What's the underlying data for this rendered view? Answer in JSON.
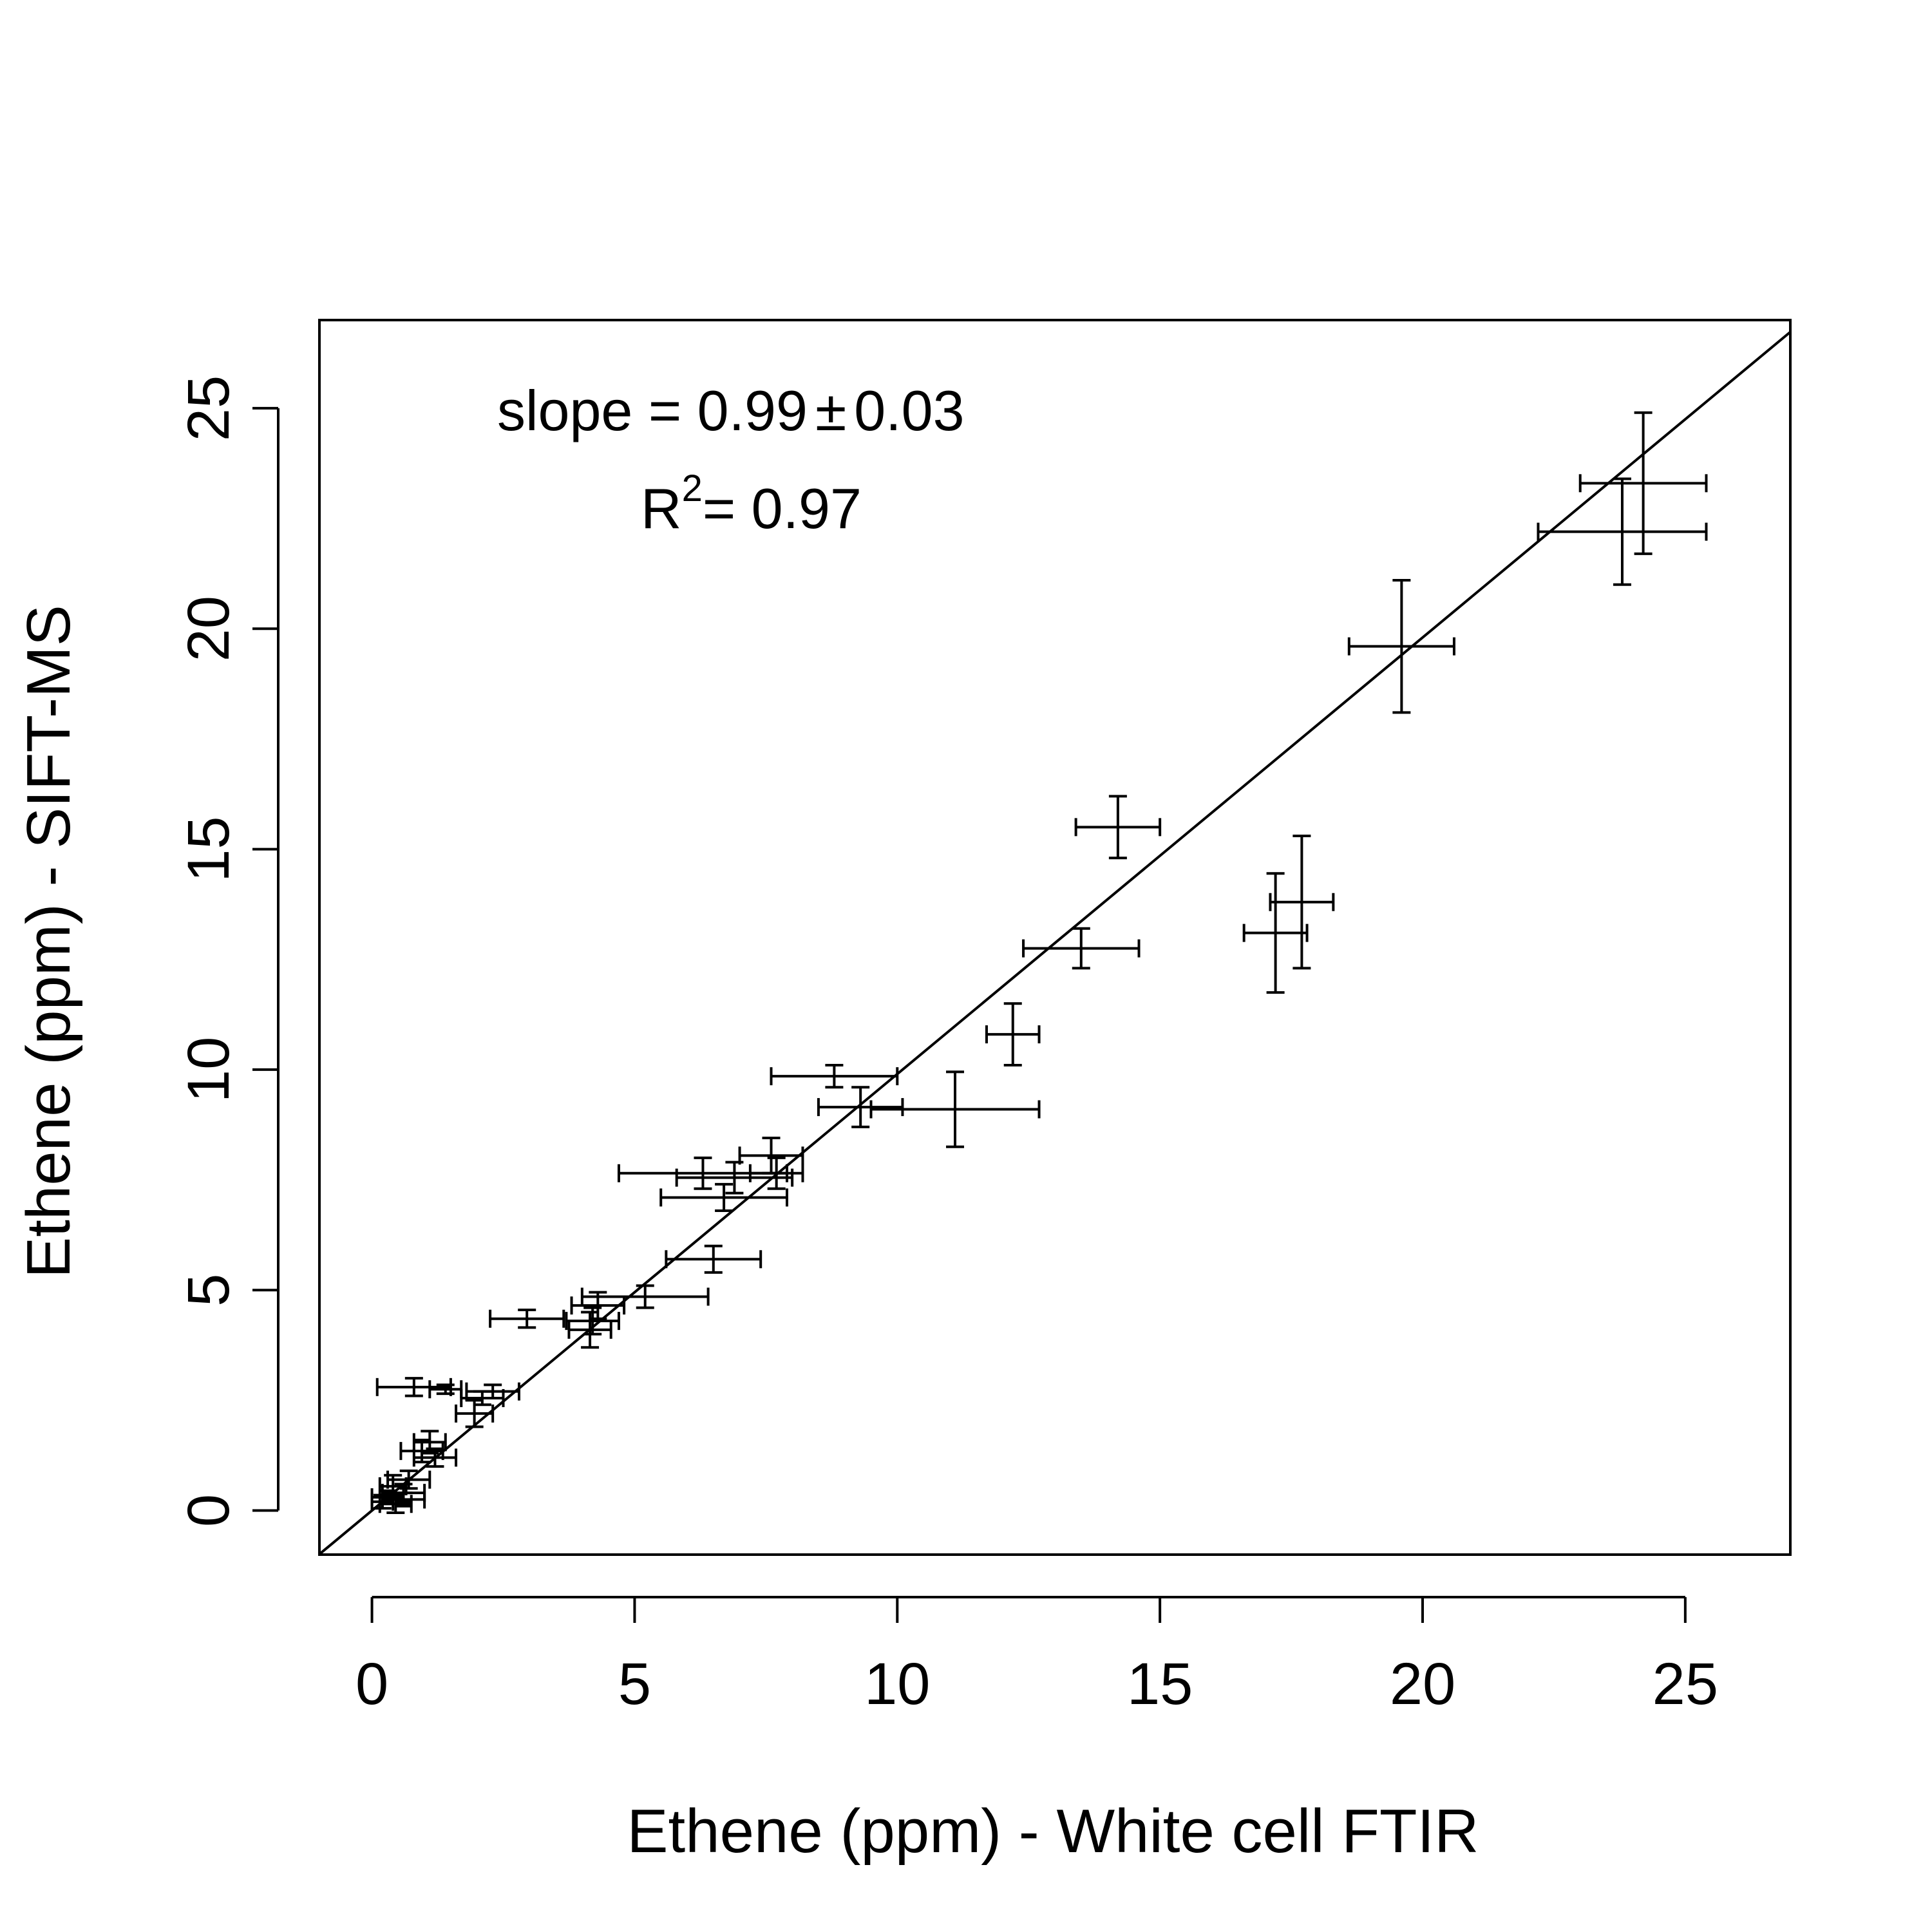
{
  "chart_data": {
    "type": "scatter",
    "title": "",
    "xlabel": "Ethene (ppm) - White cell FTIR",
    "ylabel": "Ethene (ppm) - SIFT-MS",
    "xlim": [
      -1,
      27
    ],
    "ylim": [
      -1,
      27
    ],
    "x_ticks": [
      "0",
      "5",
      "10",
      "15",
      "20",
      "25"
    ],
    "y_ticks": [
      "0",
      "5",
      "10",
      "15",
      "20",
      "25"
    ],
    "grid": false,
    "annotation": {
      "slope_text": "slope = 0.99",
      "pm_symbol": "±",
      "slope_err": "0.03",
      "r2_label": "R",
      "r2_sup": "2",
      "r2_value": "= 0.97"
    },
    "fit_line": {
      "slope": 0.99,
      "intercept": 0
    },
    "points": [
      {
        "x": 24.2,
        "y": 23.3,
        "xerr": 1.2,
        "yerr": 1.6
      },
      {
        "x": 23.8,
        "y": 22.2,
        "xerr": 1.6,
        "yerr": 1.2
      },
      {
        "x": 19.6,
        "y": 19.6,
        "xerr": 1.0,
        "yerr": 1.5
      },
      {
        "x": 14.2,
        "y": 15.5,
        "xerr": 0.8,
        "yerr": 0.7
      },
      {
        "x": 17.7,
        "y": 13.8,
        "xerr": 0.6,
        "yerr": 1.5
      },
      {
        "x": 17.2,
        "y": 13.1,
        "xerr": 0.6,
        "yerr": 1.35
      },
      {
        "x": 13.5,
        "y": 12.75,
        "xerr": 1.1,
        "yerr": 0.45
      },
      {
        "x": 12.2,
        "y": 10.8,
        "xerr": 0.5,
        "yerr": 0.7
      },
      {
        "x": 8.8,
        "y": 9.85,
        "xerr": 1.2,
        "yerr": 0.25
      },
      {
        "x": 9.3,
        "y": 9.15,
        "xerr": 0.8,
        "yerr": 0.45
      },
      {
        "x": 11.1,
        "y": 9.1,
        "xerr": 1.6,
        "yerr": 0.85
      },
      {
        "x": 7.6,
        "y": 8.05,
        "xerr": 0.6,
        "yerr": 0.4
      },
      {
        "x": 7.7,
        "y": 7.65,
        "xerr": 0.5,
        "yerr": 0.35
      },
      {
        "x": 6.9,
        "y": 7.55,
        "xerr": 1.1,
        "yerr": 0.35
      },
      {
        "x": 6.3,
        "y": 7.65,
        "xerr": 1.6,
        "yerr": 0.35
      },
      {
        "x": 6.7,
        "y": 7.1,
        "xerr": 1.2,
        "yerr": 0.3
      },
      {
        "x": 6.5,
        "y": 5.7,
        "xerr": 0.9,
        "yerr": 0.3
      },
      {
        "x": 5.2,
        "y": 4.85,
        "xerr": 1.2,
        "yerr": 0.25
      },
      {
        "x": 4.3,
        "y": 4.65,
        "xerr": 0.5,
        "yerr": 0.3
      },
      {
        "x": 4.2,
        "y": 4.3,
        "xerr": 0.5,
        "yerr": 0.3
      },
      {
        "x": 4.15,
        "y": 4.1,
        "xerr": 0.4,
        "yerr": 0.4
      },
      {
        "x": 2.95,
        "y": 4.35,
        "xerr": 0.7,
        "yerr": 0.2
      },
      {
        "x": 0.8,
        "y": 2.8,
        "xerr": 0.7,
        "yerr": 0.2
      },
      {
        "x": 1.4,
        "y": 2.75,
        "xerr": 0.3,
        "yerr": 0.1
      },
      {
        "x": 2.3,
        "y": 2.7,
        "xerr": 0.5,
        "yerr": 0.15
      },
      {
        "x": 2.1,
        "y": 2.55,
        "xerr": 0.4,
        "yerr": 0.15
      },
      {
        "x": 1.95,
        "y": 2.2,
        "xerr": 0.35,
        "yerr": 0.3
      },
      {
        "x": 1.1,
        "y": 1.55,
        "xerr": 0.3,
        "yerr": 0.25
      },
      {
        "x": 0.95,
        "y": 1.35,
        "xerr": 0.4,
        "yerr": 0.25
      },
      {
        "x": 1.2,
        "y": 1.2,
        "xerr": 0.4,
        "yerr": 0.2
      },
      {
        "x": 0.7,
        "y": 0.7,
        "xerr": 0.4,
        "yerr": 0.2
      },
      {
        "x": 0.4,
        "y": 0.55,
        "xerr": 0.25,
        "yerr": 0.25
      },
      {
        "x": 0.6,
        "y": 0.4,
        "xerr": 0.4,
        "yerr": 0.2
      },
      {
        "x": 0.3,
        "y": 0.3,
        "xerr": 0.3,
        "yerr": 0.15
      },
      {
        "x": 0.6,
        "y": 0.25,
        "xerr": 0.4,
        "yerr": 0.15
      },
      {
        "x": 0.2,
        "y": 0.2,
        "xerr": 0.2,
        "yerr": 0.15
      },
      {
        "x": 0.45,
        "y": 0.15,
        "xerr": 0.3,
        "yerr": 0.2
      }
    ]
  }
}
